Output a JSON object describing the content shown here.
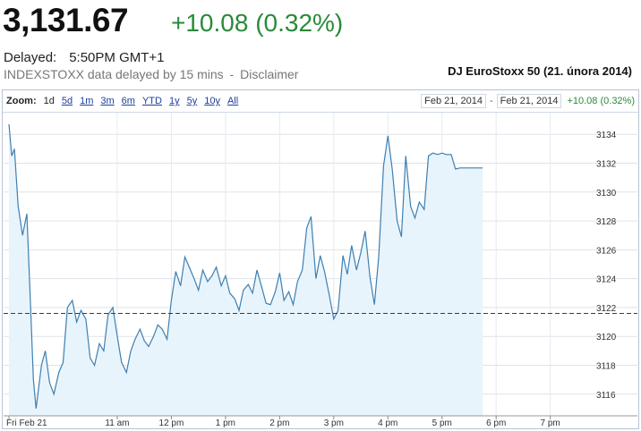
{
  "quote": {
    "price": "3,131.67",
    "change": "+10.08 (0.32%)",
    "delayed_label": "Delayed:",
    "delayed_time": "5:50PM GMT+1",
    "source_text": "INDEXSTOXX data delayed by 15 mins",
    "separator": "-",
    "disclaimer": "Disclaimer"
  },
  "chart_title": "DJ EuroStoxx 50 (21. února 2014)",
  "zoom": {
    "label": "Zoom:",
    "options": [
      "1d",
      "5d",
      "1m",
      "3m",
      "6m",
      "YTD",
      "1y",
      "5y",
      "10y",
      "All"
    ],
    "active": "1d"
  },
  "range": {
    "from": "Feb 21, 2014",
    "to": "Feb 21, 2014",
    "dash": "-",
    "change": "+10.08 (0.32%)"
  },
  "colors": {
    "line": "#3f7fb0",
    "fill": "#e8f4fc",
    "up": "#2a8a3a",
    "prev_close_line": "#8b1a1a"
  },
  "chart_data": {
    "type": "area",
    "title": "",
    "xlabel": "",
    "ylabel": "",
    "x_ticks": [
      "Fri Feb 21",
      "11 am",
      "12 pm",
      "1 pm",
      "2 pm",
      "3 pm",
      "4 pm",
      "5 pm",
      "6 pm",
      "7 pm"
    ],
    "y_ticks": [
      3116,
      3118,
      3120,
      3122,
      3124,
      3126,
      3128,
      3130,
      3132,
      3134
    ],
    "ylim": [
      3114.5,
      3135.5
    ],
    "previous_close": 3121.59,
    "grid": true,
    "series": [
      {
        "x_hours": [
          9.0,
          9.05,
          9.1,
          9.17,
          9.25,
          9.33,
          9.4,
          9.45,
          9.5,
          9.55,
          9.6,
          9.67,
          9.75,
          9.83,
          9.92,
          10.0,
          10.08,
          10.17,
          10.25,
          10.33,
          10.42,
          10.5,
          10.58,
          10.67,
          10.75,
          10.83,
          10.92,
          11.0,
          11.08,
          11.17,
          11.25,
          11.33,
          11.42,
          11.5,
          11.58,
          11.67,
          11.75,
          11.83,
          11.92,
          12.0,
          12.08,
          12.17,
          12.25,
          12.33,
          12.42,
          12.5,
          12.58,
          12.67,
          12.75,
          12.83,
          12.92,
          13.0,
          13.08,
          13.17,
          13.25,
          13.33,
          13.42,
          13.5,
          13.58,
          13.67,
          13.75,
          13.83,
          13.92,
          14.0,
          14.08,
          14.17,
          14.25,
          14.33,
          14.42,
          14.5,
          14.58,
          14.67,
          14.75,
          14.83,
          14.92,
          15.0,
          15.08,
          15.17,
          15.25,
          15.33,
          15.42,
          15.5,
          15.58,
          15.67,
          15.75,
          15.83,
          15.92,
          16.0,
          16.08,
          16.17,
          16.25,
          16.33,
          16.42,
          16.5,
          16.58,
          16.67,
          16.75,
          16.83,
          16.92,
          17.0,
          17.08,
          17.17,
          17.25,
          17.33,
          17.42,
          17.5,
          17.58,
          17.67,
          17.75
        ],
        "values": [
          3134.7,
          3132.5,
          3133.0,
          3129.0,
          3127.0,
          3128.5,
          3122.0,
          3117.0,
          3115.0,
          3116.5,
          3118.0,
          3119.0,
          3116.8,
          3116.0,
          3117.5,
          3118.2,
          3122.0,
          3122.5,
          3121.0,
          3121.8,
          3121.2,
          3118.5,
          3118.0,
          3119.5,
          3119.0,
          3121.5,
          3122.0,
          3120.0,
          3118.2,
          3117.5,
          3119.0,
          3119.8,
          3120.5,
          3119.7,
          3119.3,
          3120.0,
          3120.8,
          3120.5,
          3119.8,
          3122.5,
          3124.5,
          3123.5,
          3125.5,
          3124.8,
          3124.0,
          3123.2,
          3124.6,
          3123.8,
          3124.2,
          3124.8,
          3123.5,
          3124.2,
          3123.0,
          3122.6,
          3121.8,
          3123.2,
          3123.6,
          3123.0,
          3124.6,
          3123.4,
          3122.3,
          3122.2,
          3123.1,
          3124.4,
          3122.5,
          3123.1,
          3122.2,
          3123.8,
          3124.6,
          3127.5,
          3128.3,
          3124.0,
          3125.6,
          3124.5,
          3122.8,
          3121.2,
          3121.8,
          3125.6,
          3124.3,
          3126.3,
          3124.6,
          3125.8,
          3127.3,
          3124.1,
          3122.2,
          3125.5,
          3131.8,
          3133.9,
          3131.6,
          3128.0,
          3126.9,
          3132.5,
          3129.0,
          3128.2,
          3129.3,
          3128.8,
          3132.5,
          3132.7,
          3132.6,
          3132.7,
          3132.6,
          3132.6,
          3131.6,
          3131.67,
          3131.67,
          3131.67,
          3131.67,
          3131.67,
          3131.67
        ]
      }
    ]
  }
}
